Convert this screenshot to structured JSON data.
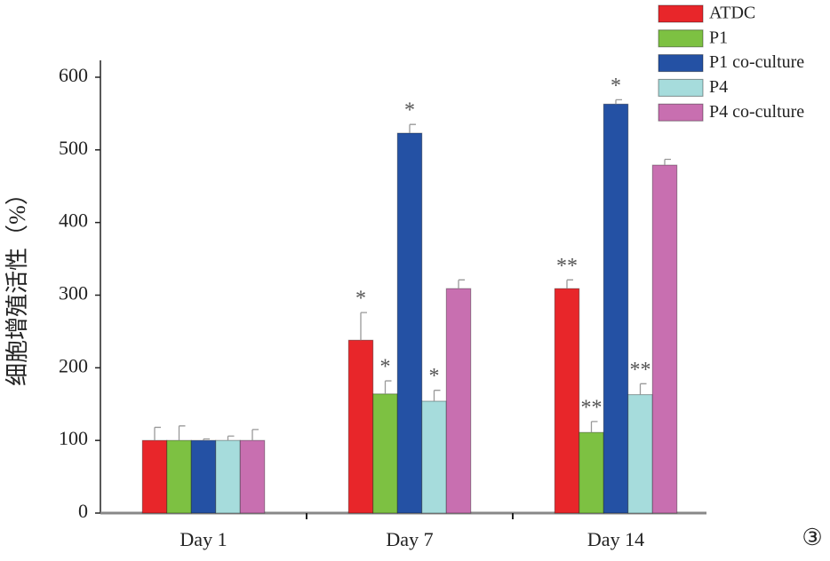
{
  "chart_data": {
    "type": "bar",
    "ylabel": "细胞增殖活性（%）",
    "categories": [
      "Day 1",
      "Day 7",
      "Day 14"
    ],
    "series": [
      {
        "name": "ATDC",
        "color": "#e8262a",
        "values": [
          100,
          238,
          309
        ],
        "errors": [
          18,
          38,
          12
        ],
        "labels": [
          null,
          "*",
          "**"
        ]
      },
      {
        "name": "P1",
        "color": "#7dc142",
        "values": [
          100,
          164,
          111
        ],
        "errors": [
          20,
          18,
          15
        ],
        "labels": [
          null,
          "*",
          "**"
        ]
      },
      {
        "name": "P1 co-culture",
        "color": "#2451a4",
        "values": [
          100,
          523,
          563
        ],
        "errors": [
          2,
          12,
          6
        ],
        "labels": [
          null,
          "*",
          "*"
        ]
      },
      {
        "name": "P4",
        "color": "#a6dcdc",
        "values": [
          100,
          154,
          163
        ],
        "errors": [
          6,
          15,
          15
        ],
        "labels": [
          null,
          "*",
          "**"
        ]
      },
      {
        "name": "P4 co-culture",
        "color": "#c86fb0",
        "values": [
          100,
          309,
          479
        ],
        "errors": [
          15,
          12,
          8
        ],
        "labels": [
          null,
          null,
          null
        ]
      }
    ],
    "ylim": [
      0,
      600
    ],
    "yticks": [
      0,
      100,
      200,
      300,
      400,
      500,
      600
    ],
    "legend": "top-right",
    "panel_label": "③"
  }
}
